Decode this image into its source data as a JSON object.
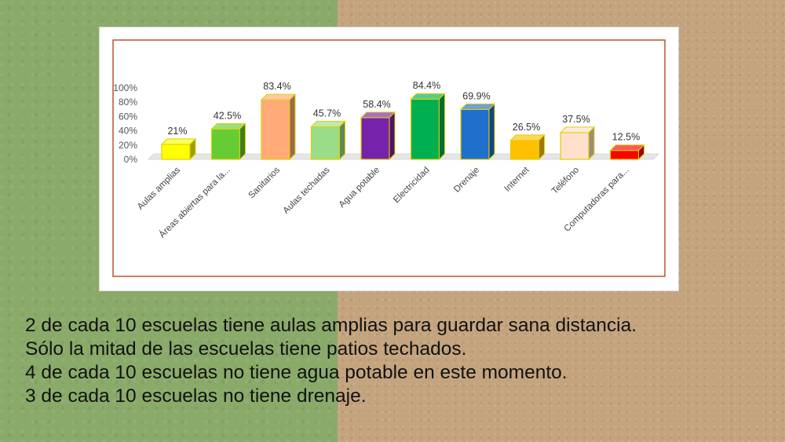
{
  "colors": {
    "background_left": "#8aaa6a",
    "background_right": "#c4a47e",
    "frame_border": "#c0502a"
  },
  "chart_data": {
    "type": "bar",
    "title": "",
    "xlabel": "",
    "ylabel": "",
    "ylim": [
      0,
      100
    ],
    "y_ticks": [
      "0%",
      "20%",
      "40%",
      "60%",
      "80%",
      "100%"
    ],
    "grid": false,
    "legend": "none",
    "style": "3d-columns",
    "categories": [
      "Aulas amplias",
      "Áreas abiertas para la...",
      "Sanitarios",
      "Aulas techadas",
      "Agua potable",
      "Electricidad",
      "Drenaje",
      "Internet",
      "Teléfono",
      "Computadoras para..."
    ],
    "values": [
      21,
      42.5,
      83.4,
      45.7,
      58.4,
      84.4,
      69.9,
      26.5,
      37.5,
      12.5
    ],
    "data_labels": [
      "21%",
      "42.5%",
      "83.4%",
      "45.7%",
      "58.4%",
      "84.4%",
      "69.9%",
      "26.5%",
      "37.5%",
      "12.5%"
    ],
    "bar_colors": [
      "#ffff00",
      "#66cc33",
      "#ffaa77",
      "#99dd88",
      "#7722aa",
      "#00b050",
      "#1f6fcc",
      "#ffc000",
      "#ffe0cc",
      "#ff0000"
    ]
  },
  "caption": {
    "lines": [
      "2 de cada 10 escuelas tiene aulas amplias para guardar sana distancia.",
      "Sólo la mitad de las escuelas tiene patios techados.",
      "4 de cada 10 escuelas no tiene agua potable en este momento.",
      "3 de cada 10 escuelas no tiene drenaje."
    ]
  }
}
